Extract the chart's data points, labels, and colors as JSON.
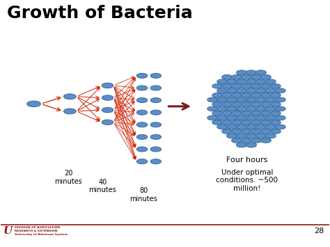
{
  "title": "Growth of Bacteria",
  "title_fontsize": 18,
  "title_fontweight": "bold",
  "bg_color": "#ffffff",
  "bacteria_fill": "#5b8ec7",
  "bacteria_edge": "#3a6a9a",
  "arrow_color": "#cc2200",
  "big_arrow_color": "#7a1a1a",
  "label_20": "20\nminutes",
  "label_40": "40\nminutes",
  "label_80": "80\nminutes",
  "label_four_hours": "Four hours",
  "label_conditions": "Under optimal\nconditions. ~500\nmillion!",
  "page_number": "28",
  "footer_line_color": "#8b1a1a",
  "footer_text_color": "#8b1a1a"
}
